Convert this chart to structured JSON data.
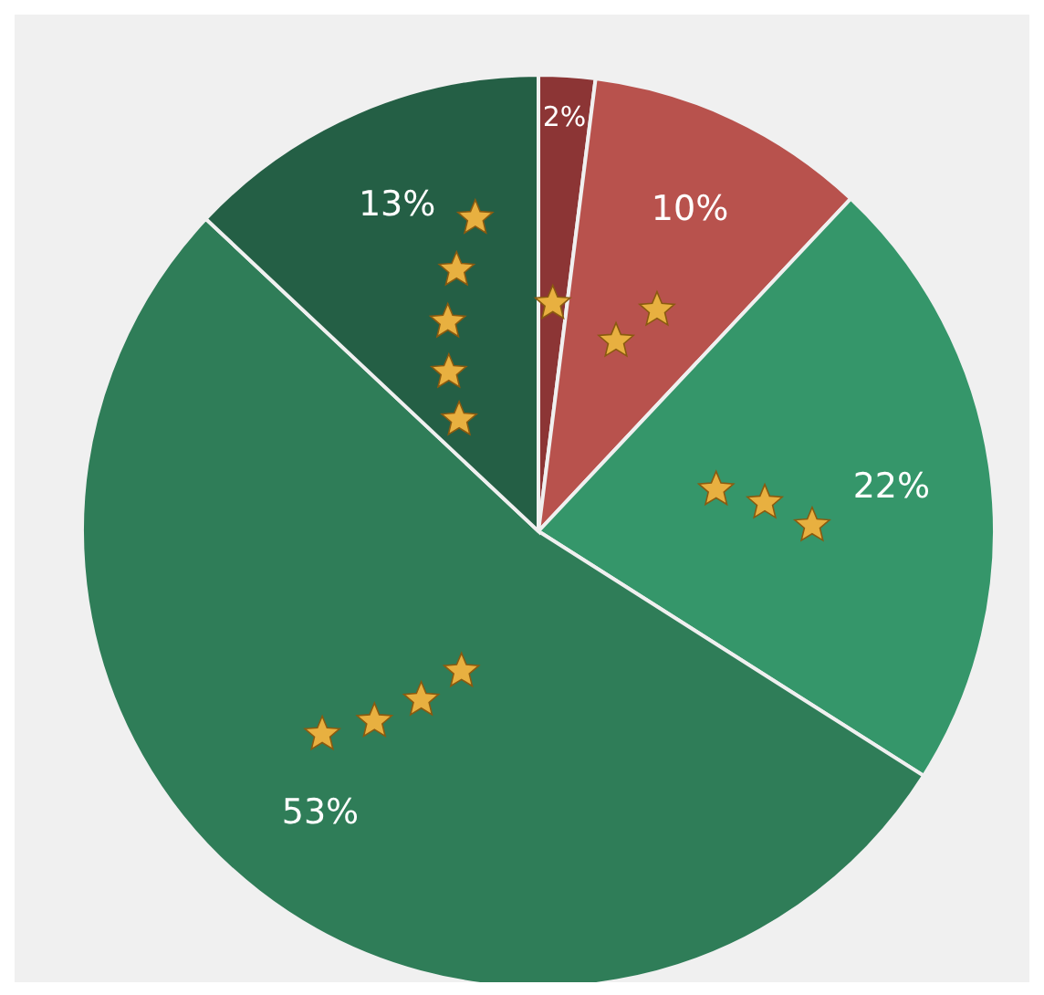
{
  "chart_data": {
    "type": "pie",
    "categories": [
      null,
      null,
      null,
      null,
      null
    ],
    "values": [
      2,
      10,
      22,
      53,
      13
    ],
    "colors": [
      "#8c3535",
      "#b8524d",
      "#35966a",
      "#2f7d58",
      "#245f45"
    ],
    "value_labels": [
      "2%",
      "10%",
      "22%",
      "53%",
      "13%"
    ]
  }
}
